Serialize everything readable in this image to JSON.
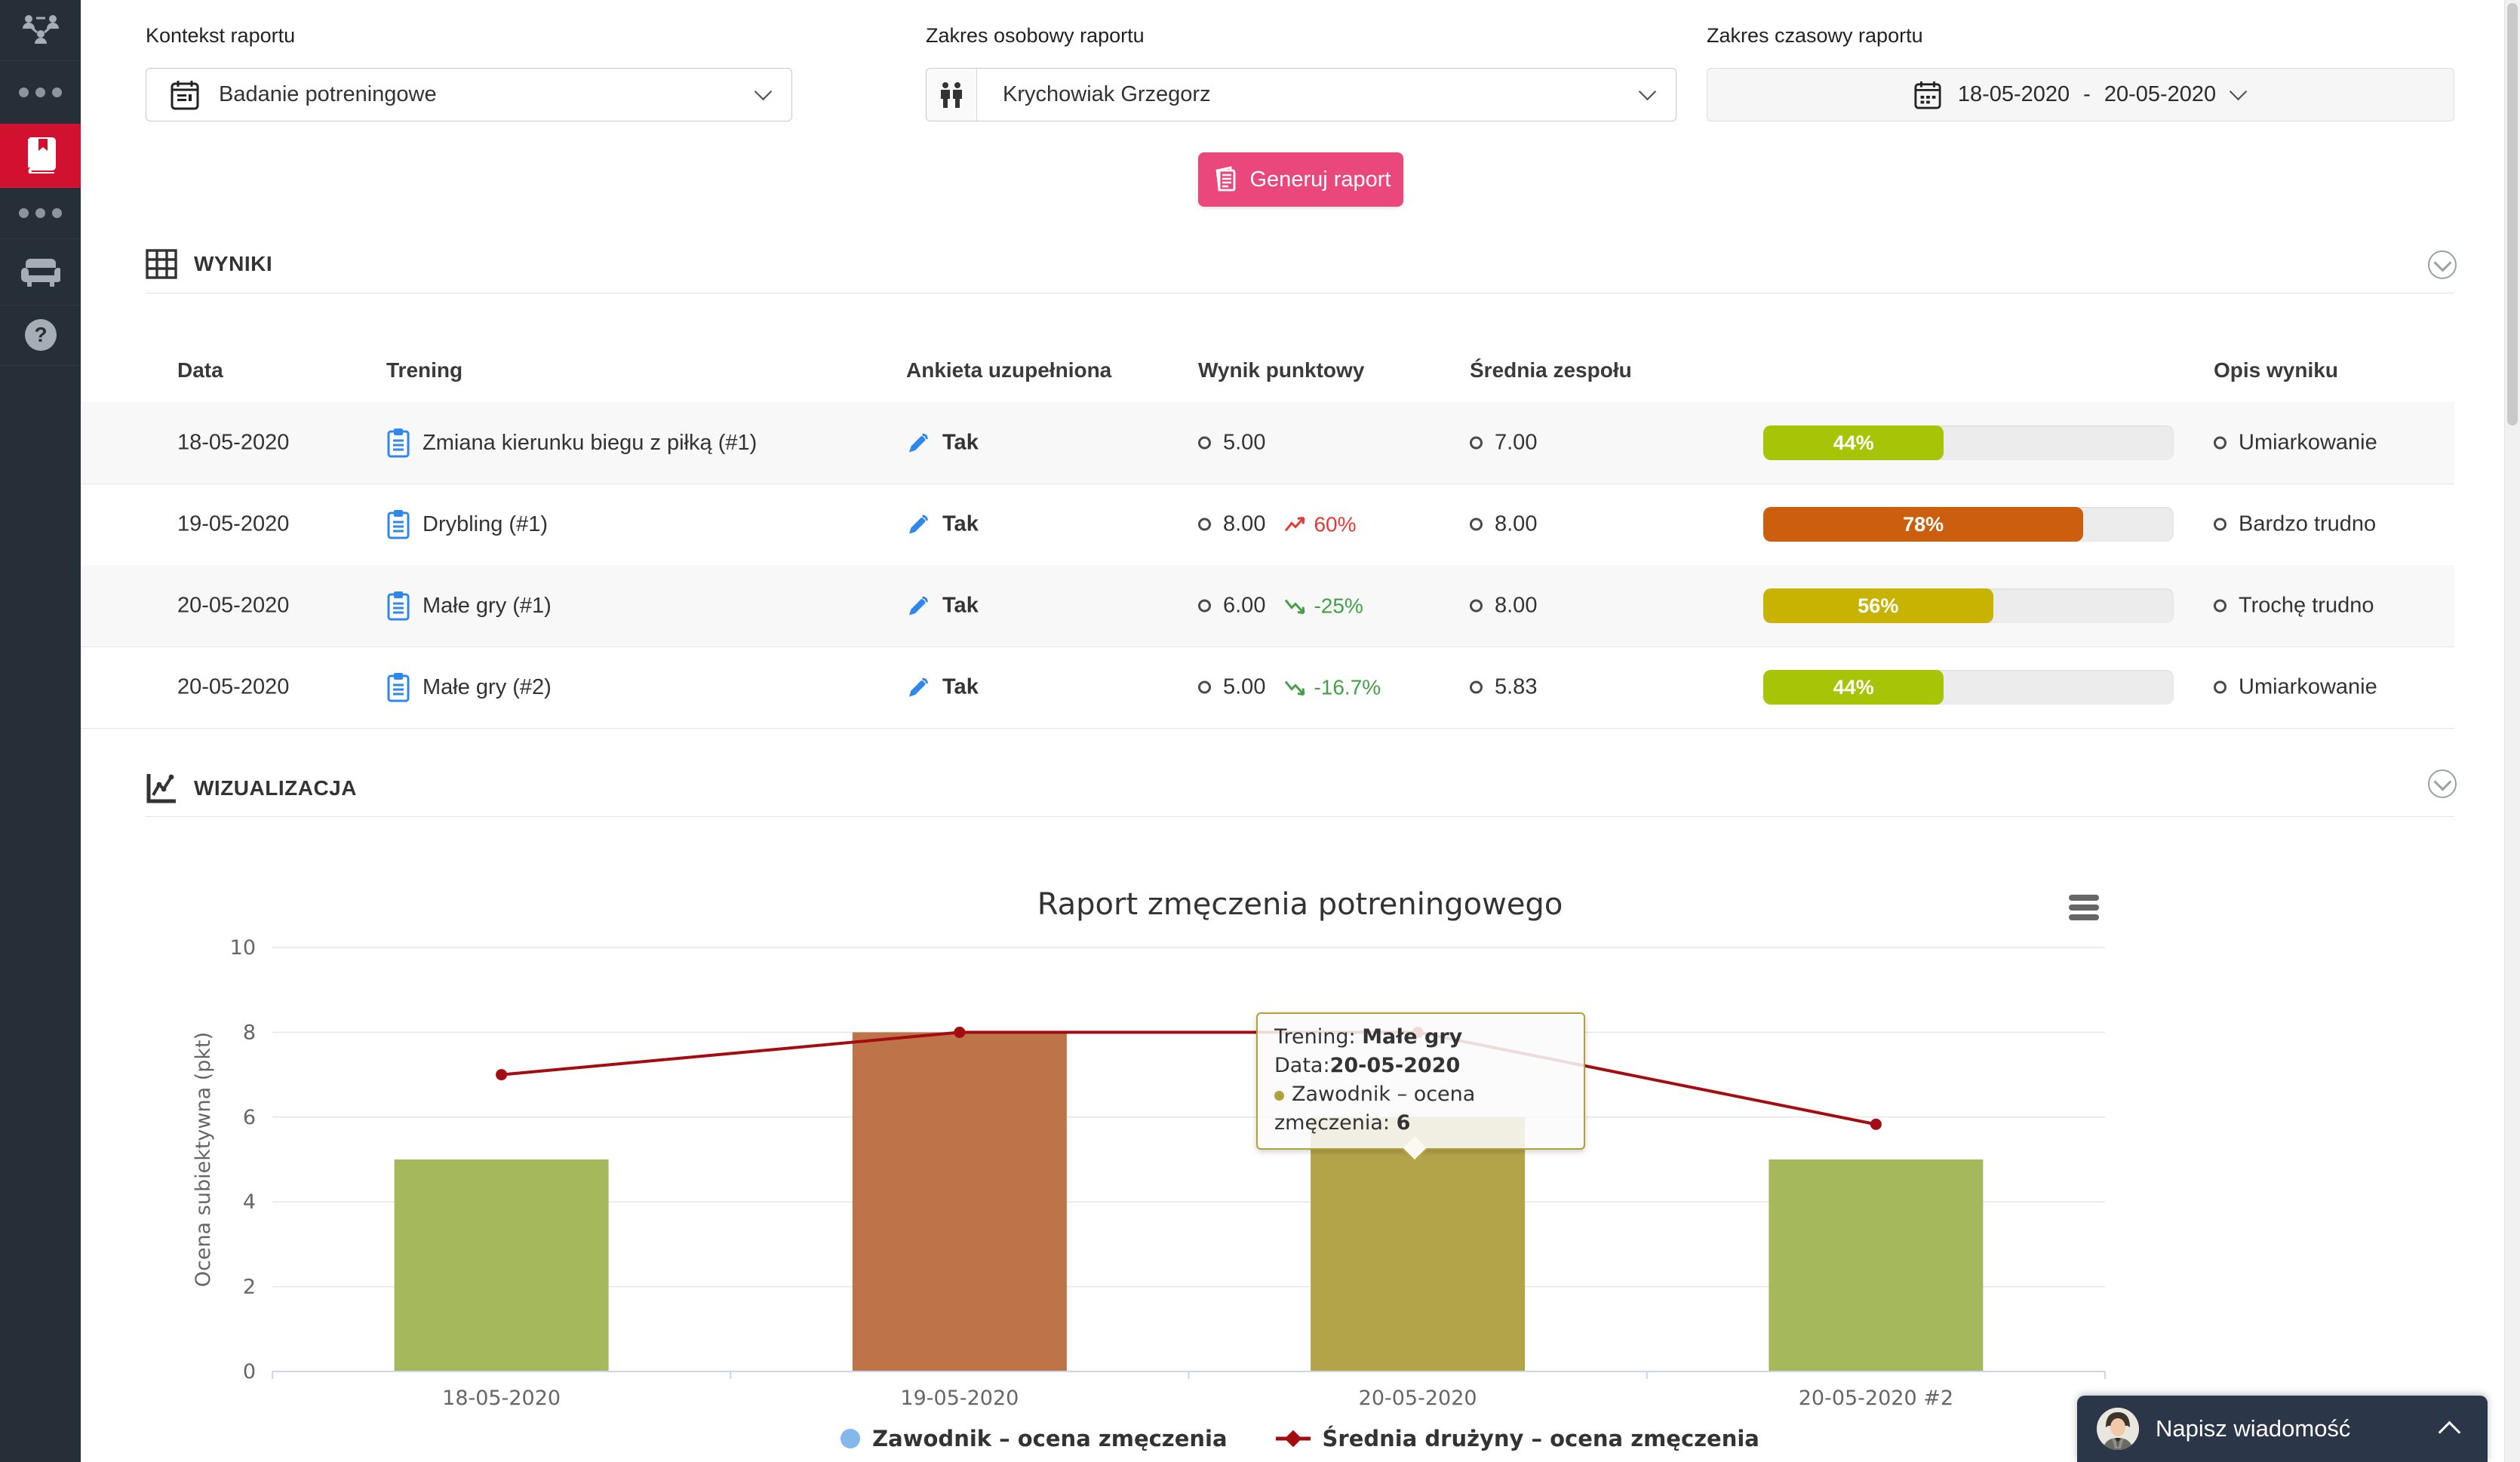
{
  "sidebar": {
    "items": [
      {
        "icon": "team-structure-icon",
        "active": false
      },
      {
        "icon": "ellipsis-icon",
        "active": false
      },
      {
        "icon": "reports-book-icon",
        "active": true
      },
      {
        "icon": "ellipsis-icon",
        "active": false
      },
      {
        "icon": "armchair-icon",
        "active": false
      },
      {
        "icon": "help-icon",
        "active": false
      }
    ],
    "active_color": "#d21130"
  },
  "filters": {
    "context": {
      "label": "Kontekst raportu",
      "value": "Badanie potreningowe",
      "icon": "calendar-icon"
    },
    "person": {
      "label": "Zakres osobowy raportu",
      "value": "Krychowiak Grzegorz",
      "icon": "people-icon"
    },
    "time": {
      "label": "Zakres czasowy raportu",
      "from": "18-05-2020",
      "separator": "-",
      "to": "20-05-2020",
      "icon": "calendar-icon"
    }
  },
  "generate_button": {
    "label": "Generuj raport",
    "color": "#ea477c",
    "icon": "report-icon"
  },
  "results": {
    "title": "WYNIKI",
    "columns": {
      "date": "Data",
      "training": "Trening",
      "survey": "Ankieta uzupełniona",
      "score": "Wynik punktowy",
      "team_avg": "Średnia zespołu",
      "description": "Opis wyniku"
    },
    "rows": [
      {
        "date": "18-05-2020",
        "training": "Zmiana kierunku biegu z piłką (#1)",
        "survey": "Tak",
        "score": "5.00",
        "trend": null,
        "trend_dir": null,
        "team_avg": "7.00",
        "percent": "44%",
        "percent_value": 44,
        "bar_color": "#a8c406",
        "description": "Umiarkowanie"
      },
      {
        "date": "19-05-2020",
        "training": "Drybling (#1)",
        "survey": "Tak",
        "score": "8.00",
        "trend": "60%",
        "trend_dir": "up",
        "team_avg": "8.00",
        "percent": "78%",
        "percent_value": 78,
        "bar_color": "#cc5f0e",
        "description": "Bardzo trudno"
      },
      {
        "date": "20-05-2020",
        "training": "Małe gry (#1)",
        "survey": "Tak",
        "score": "6.00",
        "trend": "-25%",
        "trend_dir": "down",
        "team_avg": "8.00",
        "percent": "56%",
        "percent_value": 56,
        "bar_color": "#c8b303",
        "description": "Trochę trudno"
      },
      {
        "date": "20-05-2020",
        "training": "Małe gry (#2)",
        "survey": "Tak",
        "score": "5.00",
        "trend": "-16.7%",
        "trend_dir": "down",
        "team_avg": "5.83",
        "percent": "44%",
        "percent_value": 44,
        "bar_color": "#a8c406",
        "description": "Umiarkowanie"
      }
    ],
    "trend_up_color": "#e53935",
    "trend_down_color": "#43a047"
  },
  "visualization": {
    "title": "WIZUALIZACJA"
  },
  "chart_data": {
    "type": "bar",
    "title": "Raport zmęczenia potreningowego",
    "categories": [
      "18-05-2020",
      "19-05-2020",
      "20-05-2020",
      "20-05-2020 #2"
    ],
    "series": [
      {
        "name": "Zawodnik – ocena zmęczenia",
        "type": "bar",
        "values": [
          5,
          8,
          6,
          5
        ],
        "colors": [
          "#a6b85c",
          "#bd7449",
          "#b3a44a",
          "#a6b85c"
        ],
        "legend_color": "#85b8ea"
      },
      {
        "name": "Średnia drużyny – ocena zmęczenia",
        "type": "line",
        "values": [
          7,
          8,
          8,
          5.83
        ],
        "color": "#a30d12"
      }
    ],
    "xlabel": "",
    "ylabel": "Ocena subiektywna (pkt)",
    "ylim": [
      0,
      10
    ],
    "yticks": [
      0,
      2,
      4,
      6,
      8,
      10
    ],
    "grid": true,
    "legend_position": "bottom",
    "tooltip": {
      "training_label": "Trening: ",
      "training": "Małe gry",
      "date_label": "Data:",
      "date": "20-05-2020",
      "series_label": "Zawodnik – ocena zmęczenia: ",
      "value": "6"
    }
  },
  "chat": {
    "label": "Napisz wiadomość",
    "icon": "avatar"
  }
}
